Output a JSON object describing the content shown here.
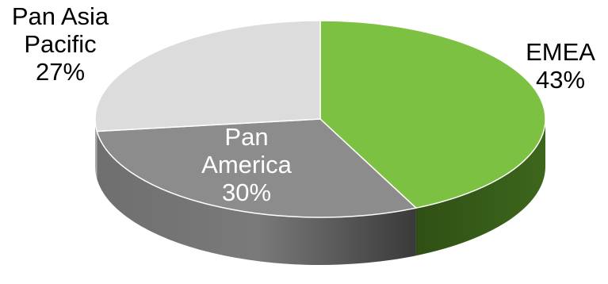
{
  "chart_data": {
    "type": "pie",
    "style": "3d",
    "slices": [
      {
        "label_lines": [
          "EMEA"
        ],
        "value_label": "43%",
        "value": 43,
        "color": "#7dc142",
        "side_color": "#3f6a1c"
      },
      {
        "label_lines": [
          "Pan",
          "America"
        ],
        "value_label": "30%",
        "value": 30,
        "color": "#8c8c8c",
        "side_color": "#555555"
      },
      {
        "label_lines": [
          "Pan Asia",
          "Pacific"
        ],
        "value_label": "27%",
        "value": 27,
        "color": "#dcdcdc",
        "side_color": "#a8a8a8"
      }
    ],
    "label_colors": {
      "outside": "#000000",
      "inside": "#ffffff"
    }
  }
}
